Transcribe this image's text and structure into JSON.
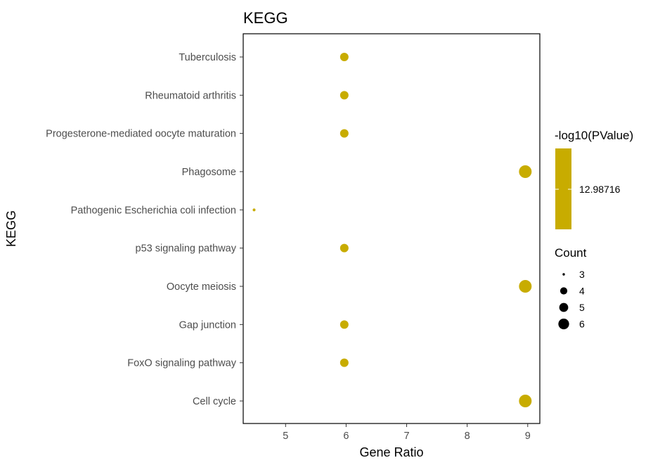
{
  "chart_data": {
    "type": "scatter",
    "title": "KEGG",
    "xlabel": "Gene Ratio",
    "ylabel": "KEGG",
    "xlim": [
      4.3,
      9.2
    ],
    "xticks": [
      5,
      6,
      7,
      8,
      9
    ],
    "categories": [
      "Tuberculosis",
      "Rheumatoid arthritis",
      "Progesterone-mediated oocyte maturation",
      "Phagosome",
      "Pathogenic Escherichia coli infection",
      "p53 signaling pathway",
      "Oocyte meiosis",
      "Gap junction",
      "FoxO signaling pathway",
      "Cell cycle"
    ],
    "points": [
      {
        "category": "Tuberculosis",
        "x": 5.97,
        "count": 4
      },
      {
        "category": "Rheumatoid arthritis",
        "x": 5.97,
        "count": 4
      },
      {
        "category": "Progesterone-mediated oocyte maturation",
        "x": 5.97,
        "count": 4
      },
      {
        "category": "Phagosome",
        "x": 8.96,
        "count": 6
      },
      {
        "category": "Pathogenic Escherichia coli infection",
        "x": 4.48,
        "count": 3
      },
      {
        "category": "p53 signaling pathway",
        "x": 5.97,
        "count": 4
      },
      {
        "category": "Oocyte meiosis",
        "x": 8.96,
        "count": 6
      },
      {
        "category": "Gap junction",
        "x": 5.97,
        "count": 4
      },
      {
        "category": "FoxO signaling pathway",
        "x": 5.97,
        "count": 4
      },
      {
        "category": "Cell cycle",
        "x": 8.96,
        "count": 6
      }
    ],
    "point_color": "#c8ac00",
    "color_legend": {
      "title": "-log10(PValue)",
      "value_label": "12.98716",
      "color": "#c8ac00"
    },
    "size_legend": {
      "title": "Count",
      "values": [
        3,
        4,
        5,
        6
      ]
    },
    "grid": false
  }
}
